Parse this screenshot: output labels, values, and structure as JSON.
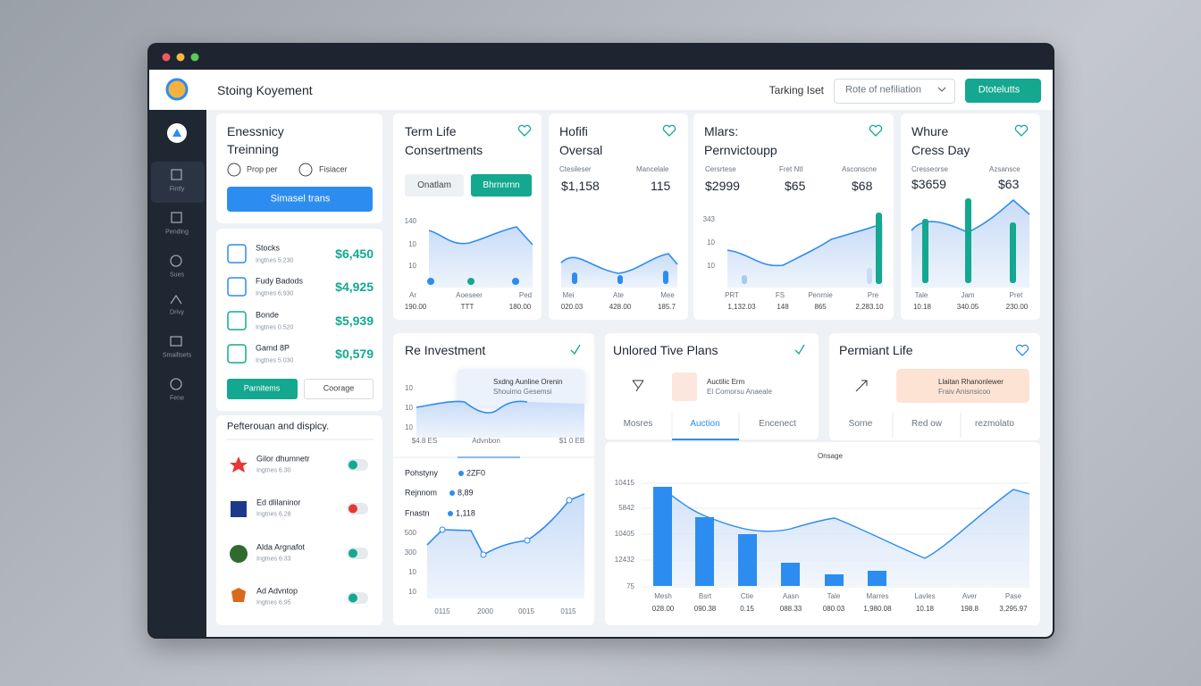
{
  "header": {
    "title": "Stoing Koyement",
    "tracking": "Tarking Iset",
    "dropdown": "Rote of nefiliation",
    "button": "Dtotelutts"
  },
  "sidebar": [
    "Fintly",
    "Pending",
    "Sues",
    "Drivy",
    "Smailtsets",
    "Fene"
  ],
  "training": {
    "title_lines": [
      "Enessnicy",
      "Treinning"
    ],
    "options": [
      "Prop per",
      "Fisiacer"
    ],
    "button": "Simasel trans"
  },
  "holdings": {
    "rows": [
      {
        "name": "Stocks",
        "sub": "Ingtnes 5.230",
        "value": "$6,450"
      },
      {
        "name": "Fudy Badods",
        "sub": "Ingtnes 6,930",
        "value": "$4,925"
      },
      {
        "name": "Bonde",
        "sub": "Ingtnes 0.520",
        "value": "$5,939"
      },
      {
        "name": "Gamd 8P",
        "sub": "Ingtnes 5.030",
        "value": "$0,579"
      }
    ],
    "buttons": [
      "Parnitems",
      "Coorage"
    ]
  },
  "preferences": {
    "title": "Pefterouan and dispicy.",
    "items": [
      {
        "name": "Gilor dhumnetr",
        "sub": "Ingtnes 6.30"
      },
      {
        "name": "Ed dlilaninor",
        "sub": "Ingtnes 6.28"
      },
      {
        "name": "Alda Argnafot",
        "sub": "Ingtnes 6.33"
      },
      {
        "name": "Ad Advntop",
        "sub": "Ingtnes 6.95"
      }
    ]
  },
  "term_life": {
    "title_lines": [
      "Term Life",
      "Consertments"
    ],
    "tabs": [
      "Onatlam",
      "Bhrnnrnn"
    ],
    "y_labels": [
      "140",
      "10",
      "10"
    ],
    "x_labels": [
      "Ar",
      "Aoeseer",
      "Ped"
    ],
    "footer": [
      "190.00",
      "TTT",
      "180.00"
    ]
  },
  "hofifi": {
    "title_lines": [
      "Hofifi",
      "Oversal"
    ],
    "labels": [
      "Ctesileser",
      "Mancelale"
    ],
    "values": [
      "$1,158",
      "115"
    ],
    "x_labels": [
      "Mei",
      "Ate",
      "Mee"
    ],
    "footer": [
      "020.03",
      "428.00",
      "185.7"
    ]
  },
  "mlars": {
    "title_lines": [
      "Mlars:",
      "Pernvictoupp"
    ],
    "labels": [
      "Cersrtese",
      "Fret Ntl",
      "Asconscne"
    ],
    "values": [
      "$2999",
      "$65",
      "$68"
    ],
    "y_labels": [
      "343",
      "10",
      "10"
    ],
    "x_labels": [
      "PRT",
      "FS",
      "Penrnie",
      "Pre"
    ],
    "footer": [
      "1,132.03",
      "148",
      "865",
      "2,283.10"
    ]
  },
  "whure": {
    "title_lines": [
      "Whure",
      "Cress Day"
    ],
    "labels": [
      "Cresseorse",
      "Azsansce"
    ],
    "values": [
      "$3659",
      "$63"
    ],
    "x_labels": [
      "Tale",
      "Jam",
      "Pret"
    ],
    "footer": [
      "10.18",
      "340.05",
      "230.00"
    ]
  },
  "investment": {
    "title": "Re Investment",
    "tooltip": [
      "Sxdng Aunline Orenin",
      "Shouimo Gesemsi"
    ],
    "y_labels": [
      "10",
      "10",
      "10"
    ],
    "bottom": [
      "$4.8 ES",
      "Advnbon",
      "$1 0 EB"
    ],
    "legend": [
      {
        "name": "Pohstyny",
        "value": "2ZF0"
      },
      {
        "name": "Rejnnom",
        "value": "8,89"
      },
      {
        "name": "Fnastn",
        "value": "1,118"
      }
    ],
    "y2_labels": [
      "500",
      "300",
      "10",
      "10"
    ],
    "x_labels": [
      "0115",
      "2000",
      "0015",
      "0115"
    ]
  },
  "tive_plans": {
    "title": "Unlored Tive Plans",
    "box": [
      "Auctilic Erm",
      "El Comorsu Anaeale"
    ],
    "tabs": [
      "Mosres",
      "Auction",
      "Encenect"
    ]
  },
  "permiant": {
    "title": "Permiant Life",
    "box": [
      "Llaitan Rhanonlewer",
      "Fraiv Anisnsicoo"
    ],
    "tabs": [
      "Sorne",
      "Red ow",
      "rezmolato"
    ]
  },
  "onsage": {
    "title": "Onsage",
    "y_labels": [
      "10415",
      "5842",
      "10405",
      "12432",
      "75"
    ],
    "categories": [
      "Mesh",
      "Bsrt",
      "Ctie",
      "Aasn",
      "Tale",
      "Marres",
      "Lavles",
      "Aver",
      "Pase"
    ],
    "values": [
      "028.00",
      "090.38",
      "0.15",
      "088.33",
      "080.03",
      "1,980.08",
      "10.18",
      "198.8",
      "3,295.97"
    ]
  }
}
